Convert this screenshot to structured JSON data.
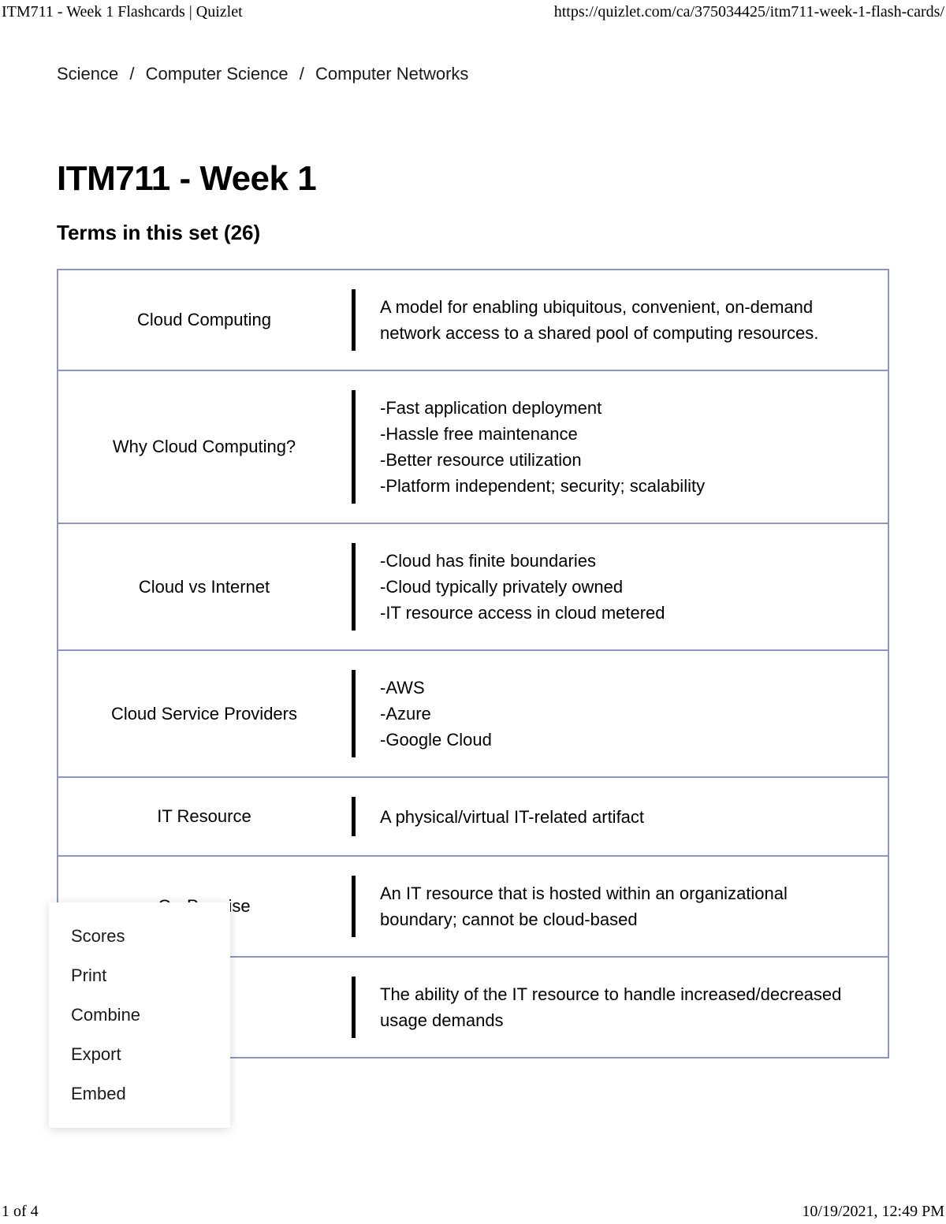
{
  "header": {
    "title": "ITM711 - Week 1 Flashcards | Quizlet",
    "url": "https://quizlet.com/ca/375034425/itm711-week-1-flash-cards/"
  },
  "breadcrumb": {
    "items": [
      "Science",
      "Computer Science",
      "Computer Networks"
    ],
    "separator": "/"
  },
  "main": {
    "title": "ITM711 - Week 1",
    "subtitle": "Terms in this set (26)"
  },
  "terms": [
    {
      "term": "Cloud Computing",
      "definition": "A model for enabling ubiquitous, convenient, on-demand network access to a shared pool of computing resources."
    },
    {
      "term": "Why Cloud Computing?",
      "definition": "-Fast application deployment\n-Hassle free maintenance\n-Better resource utilization\n-Platform independent; security; scalability"
    },
    {
      "term": "Cloud vs Internet",
      "definition": "-Cloud has finite boundaries\n-Cloud typically privately owned\n-IT resource access in cloud metered"
    },
    {
      "term": "Cloud Service Providers",
      "definition": "-AWS\n-Azure\n-Google Cloud"
    },
    {
      "term": "IT Resource",
      "definition": "A physical/virtual IT-related artifact"
    },
    {
      "term": "On-Premise",
      "definition": "An IT resource that is hosted within an organizational boundary; cannot be cloud-based"
    },
    {
      "term": "",
      "definition": "The ability of the IT resource to handle increased/decreased usage demands"
    }
  ],
  "popup": {
    "items": [
      "Scores",
      "Print",
      "Combine",
      "Export",
      "Embed"
    ]
  },
  "footer": {
    "pageInfo": "1 of 4",
    "timestamp": "10/19/2021, 12:49 PM"
  },
  "styling": {
    "table_border_color": "#8b95c9",
    "divider_color": "#000000",
    "background_color": "#ffffff",
    "text_color": "#000000",
    "title_fontsize": 44,
    "subtitle_fontsize": 26,
    "body_fontsize": 22
  }
}
